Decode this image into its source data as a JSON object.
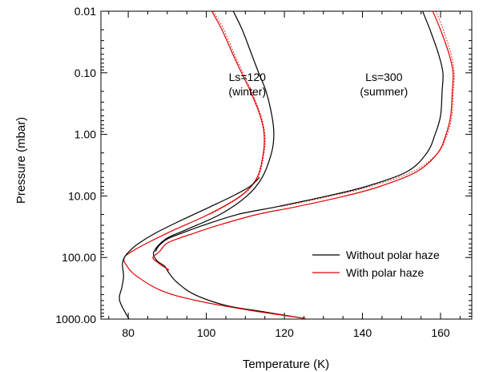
{
  "chart_data": {
    "type": "line",
    "title": "",
    "xlabel": "Temperature (K)",
    "ylabel": "Pressure (mbar)",
    "xlim": [
      73,
      168
    ],
    "ylim": [
      1000,
      0.01
    ],
    "y_scale": "log",
    "grid": false,
    "x_ticks": [
      80,
      100,
      120,
      140,
      160
    ],
    "x_tick_labels": [
      "80",
      "100",
      "120",
      "140",
      "160"
    ],
    "y_ticks": [
      0.01,
      0.1,
      1,
      10,
      100,
      1000
    ],
    "y_tick_labels": [
      "0.01",
      "0.10",
      "1.00",
      "10.00",
      "100.00",
      "1000.00"
    ],
    "annotations": [
      {
        "lines": [
          "Ls=120",
          "(winter)"
        ],
        "x": 110.5,
        "y": 0.135
      },
      {
        "lines": [
          "Ls=300",
          "(summer)"
        ],
        "x": 145.5,
        "y": 0.135
      }
    ],
    "legend": {
      "position": "bottom-right",
      "entries": [
        {
          "label": "Without polar haze",
          "color": "#000000"
        },
        {
          "label": "With polar haze",
          "color": "#e00000"
        }
      ]
    },
    "series": [
      {
        "color": "#000000",
        "style": "solid",
        "points": [
          [
            106.9,
            0.01
          ],
          [
            109.2,
            0.02
          ],
          [
            111.6,
            0.05
          ],
          [
            113.4,
            0.1
          ],
          [
            115.3,
            0.2
          ],
          [
            116.8,
            0.5
          ],
          [
            117.3,
            1.0
          ],
          [
            116.7,
            2.0
          ],
          [
            114.3,
            5.0
          ],
          [
            110.4,
            10.0
          ],
          [
            103.5,
            20.0
          ],
          [
            95.0,
            35.0
          ],
          [
            89.6,
            50.0
          ],
          [
            86.6,
            80.0
          ],
          [
            87.2,
            110.0
          ],
          [
            89.4,
            140.0
          ],
          [
            90.2,
            170.0
          ],
          [
            92.4,
            250.0
          ],
          [
            97.0,
            400.0
          ],
          [
            105.0,
            600.0
          ],
          [
            114.0,
            750.0
          ],
          [
            125.4,
            980.0
          ]
        ]
      },
      {
        "color": "#e00000",
        "style": "solid",
        "points": [
          [
            101.4,
            0.01
          ],
          [
            104.0,
            0.02
          ],
          [
            106.8,
            0.05
          ],
          [
            109.0,
            0.1
          ],
          [
            111.3,
            0.2
          ],
          [
            113.8,
            0.5
          ],
          [
            114.8,
            1.0
          ],
          [
            114.6,
            2.0
          ],
          [
            113.0,
            5.0
          ],
          [
            108.8,
            10.0
          ],
          [
            100.5,
            20.0
          ],
          [
            92.0,
            35.0
          ],
          [
            85.6,
            55.0
          ],
          [
            80.9,
            80.0
          ],
          [
            79.0,
            100.0
          ],
          [
            79.4,
            130.0
          ],
          [
            82.1,
            200.0
          ],
          [
            88.7,
            350.0
          ],
          [
            97.5,
            500.0
          ],
          [
            110.0,
            700.0
          ],
          [
            125.4,
            980.0
          ]
        ]
      },
      {
        "color": "#000000",
        "style": "solid",
        "points": [
          [
            80.2,
            1000.0
          ],
          [
            77.8,
            500.0
          ],
          [
            78.4,
            300.0
          ],
          [
            78.8,
            200.0
          ],
          [
            78.5,
            130.0
          ],
          [
            79.0,
            100.0
          ],
          [
            80.2,
            80.0
          ],
          [
            82.5,
            60.0
          ],
          [
            87.0,
            40.0
          ],
          [
            93.5,
            25.0
          ],
          [
            101.0,
            15.0
          ],
          [
            106.8,
            10.0
          ],
          [
            111.2,
            7.0
          ],
          [
            113.6,
            5.0
          ]
        ]
      },
      {
        "color": "#000000",
        "style": "solid",
        "points": [
          [
            155.4,
            0.01
          ],
          [
            157.3,
            0.02
          ],
          [
            159.5,
            0.05
          ],
          [
            160.6,
            0.1
          ],
          [
            160.4,
            0.2
          ],
          [
            160.0,
            0.5
          ],
          [
            158.6,
            1.0
          ],
          [
            156.5,
            2.0
          ],
          [
            151.5,
            4.0
          ],
          [
            141.0,
            7.0
          ],
          [
            131.0,
            10.0
          ],
          [
            118.0,
            15.0
          ],
          [
            108.0,
            20.0
          ],
          [
            99.2,
            30.0
          ],
          [
            93.8,
            40.0
          ],
          [
            90.0,
            50.0
          ],
          [
            87.8,
            65.0
          ],
          [
            87.0,
            80.0
          ]
        ]
      },
      {
        "color": "#e00000",
        "style": "solid",
        "points": [
          [
            158.0,
            0.01
          ],
          [
            160.0,
            0.02
          ],
          [
            162.2,
            0.05
          ],
          [
            163.2,
            0.1
          ],
          [
            163.0,
            0.2
          ],
          [
            162.6,
            0.5
          ],
          [
            161.4,
            1.0
          ],
          [
            159.3,
            2.0
          ],
          [
            154.0,
            4.0
          ],
          [
            144.5,
            7.0
          ],
          [
            135.6,
            10.0
          ],
          [
            123.0,
            15.0
          ],
          [
            113.0,
            20.0
          ],
          [
            103.0,
            30.0
          ],
          [
            97.0,
            40.0
          ],
          [
            92.5,
            50.0
          ],
          [
            89.7,
            60.0
          ],
          [
            88.0,
            80.0
          ],
          [
            86.3,
            100.0
          ],
          [
            87.5,
            120.0
          ],
          [
            89.0,
            140.0
          ],
          [
            90.5,
            160.0
          ]
        ]
      },
      {
        "color": "#e00000",
        "style": "dotted",
        "points": [
          [
            158.8,
            0.01
          ],
          [
            160.7,
            0.02
          ],
          [
            162.7,
            0.05
          ],
          [
            163.5,
            0.1
          ],
          [
            163.3,
            0.2
          ],
          [
            162.9,
            0.5
          ],
          [
            161.7,
            1.0
          ],
          [
            159.3,
            2.0
          ],
          [
            153.0,
            4.0
          ],
          [
            142.0,
            7.0
          ],
          [
            132.0,
            10.0
          ],
          [
            119.0,
            15.0
          ]
        ]
      },
      {
        "color": "#e00000",
        "style": "dotted",
        "points": [
          [
            101.8,
            0.01
          ],
          [
            104.5,
            0.02
          ],
          [
            107.2,
            0.05
          ],
          [
            109.4,
            0.1
          ],
          [
            111.6,
            0.2
          ],
          [
            114.0,
            0.5
          ],
          [
            115.0,
            1.0
          ],
          [
            114.8,
            2.0
          ],
          [
            113.2,
            5.0
          ],
          [
            109.0,
            10.0
          ],
          [
            101.0,
            20.0
          ]
        ]
      }
    ]
  },
  "colors": {
    "axis": "#000000",
    "without_haze": "#000000",
    "with_haze": "#e00000"
  }
}
